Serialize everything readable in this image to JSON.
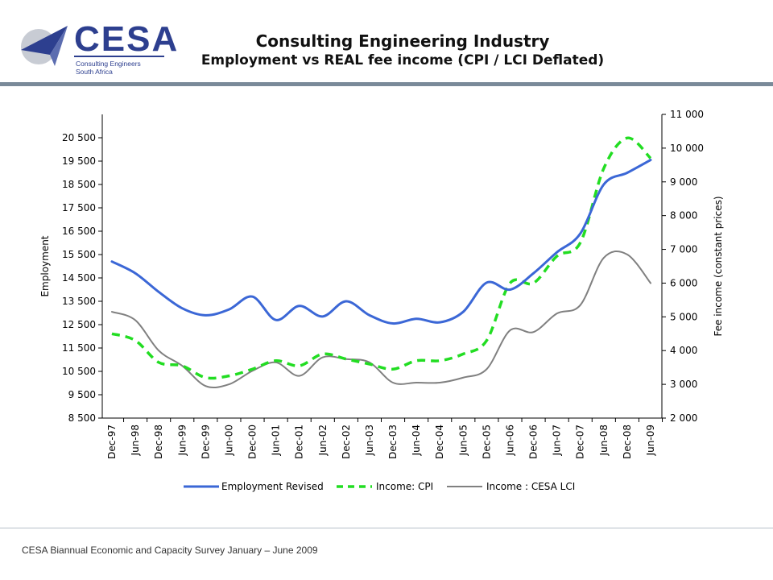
{
  "header": {
    "logo_text": "CESA",
    "logo_subtext": "Consulting Engineers South Africa",
    "title": "Consulting Engineering Industry",
    "subtitle": "Employment vs REAL fee income (CPI / LCI Deflated)"
  },
  "footer": {
    "text": "CESA Biannual Economic and Capacity Survey January – June 2009"
  },
  "colors": {
    "employment": "#3b67d6",
    "income_cpi": "#22dd22",
    "income_lci": "#808080",
    "rule": "#7a8a99"
  },
  "chart_data": {
    "type": "line",
    "xlabel": "",
    "ylabel": "Employment",
    "y2label": "Fee income (constant prices)",
    "categories": [
      "Dec-97",
      "Jun-98",
      "Dec-98",
      "Jun-99",
      "Dec-99",
      "Jun-00",
      "Dec-00",
      "Jun-01",
      "Dec-01",
      "Jun-02",
      "Dec-02",
      "Jun-03",
      "Dec-03",
      "Jun-04",
      "Dec-04",
      "Jun-05",
      "Dec-05",
      "Jun-06",
      "Dec-06",
      "Jun-07",
      "Dec-07",
      "Jun-08",
      "Dec-08",
      "Jun-09"
    ],
    "ylim": [
      8500,
      21500
    ],
    "y_ticks": [
      "8 500",
      "9 500",
      "10 500",
      "11 500",
      "12 500",
      "13 500",
      "14 500",
      "15 500",
      "16 500",
      "17 500",
      "18 500",
      "19 500",
      "20 500"
    ],
    "y2lim": [
      2000,
      11000
    ],
    "y2_ticks": [
      "2 000",
      "3 000",
      "4 000",
      "5 000",
      "6 000",
      "7 000",
      "8 000",
      "9 000",
      "10 000",
      "11 000"
    ],
    "grid": false,
    "legend_position": "bottom",
    "series": [
      {
        "name": "Employment Revised",
        "axis": "left",
        "style": "solid",
        "values": [
          15200,
          14700,
          13900,
          13200,
          12900,
          13150,
          13700,
          12700,
          13300,
          12850,
          13500,
          12900,
          12550,
          12750,
          12600,
          13050,
          14300,
          14000,
          14700,
          15600,
          16400,
          18500,
          19000,
          19550
        ]
      },
      {
        "name": "Income: CPI",
        "axis": "right",
        "style": "dashed",
        "values": [
          4500,
          4300,
          3650,
          3550,
          3200,
          3250,
          3450,
          3700,
          3550,
          3900,
          3750,
          3600,
          3450,
          3700,
          3700,
          3900,
          4300,
          6000,
          6000,
          6800,
          7200,
          9400,
          10300,
          9700
        ]
      },
      {
        "name": "Income : CESA LCI",
        "axis": "right",
        "style": "solid",
        "values": [
          5150,
          4900,
          4000,
          3550,
          2950,
          3000,
          3400,
          3650,
          3250,
          3800,
          3750,
          3650,
          3050,
          3050,
          3050,
          3200,
          3450,
          4600,
          4550,
          5100,
          5350,
          6750,
          6850,
          6000
        ]
      }
    ]
  }
}
